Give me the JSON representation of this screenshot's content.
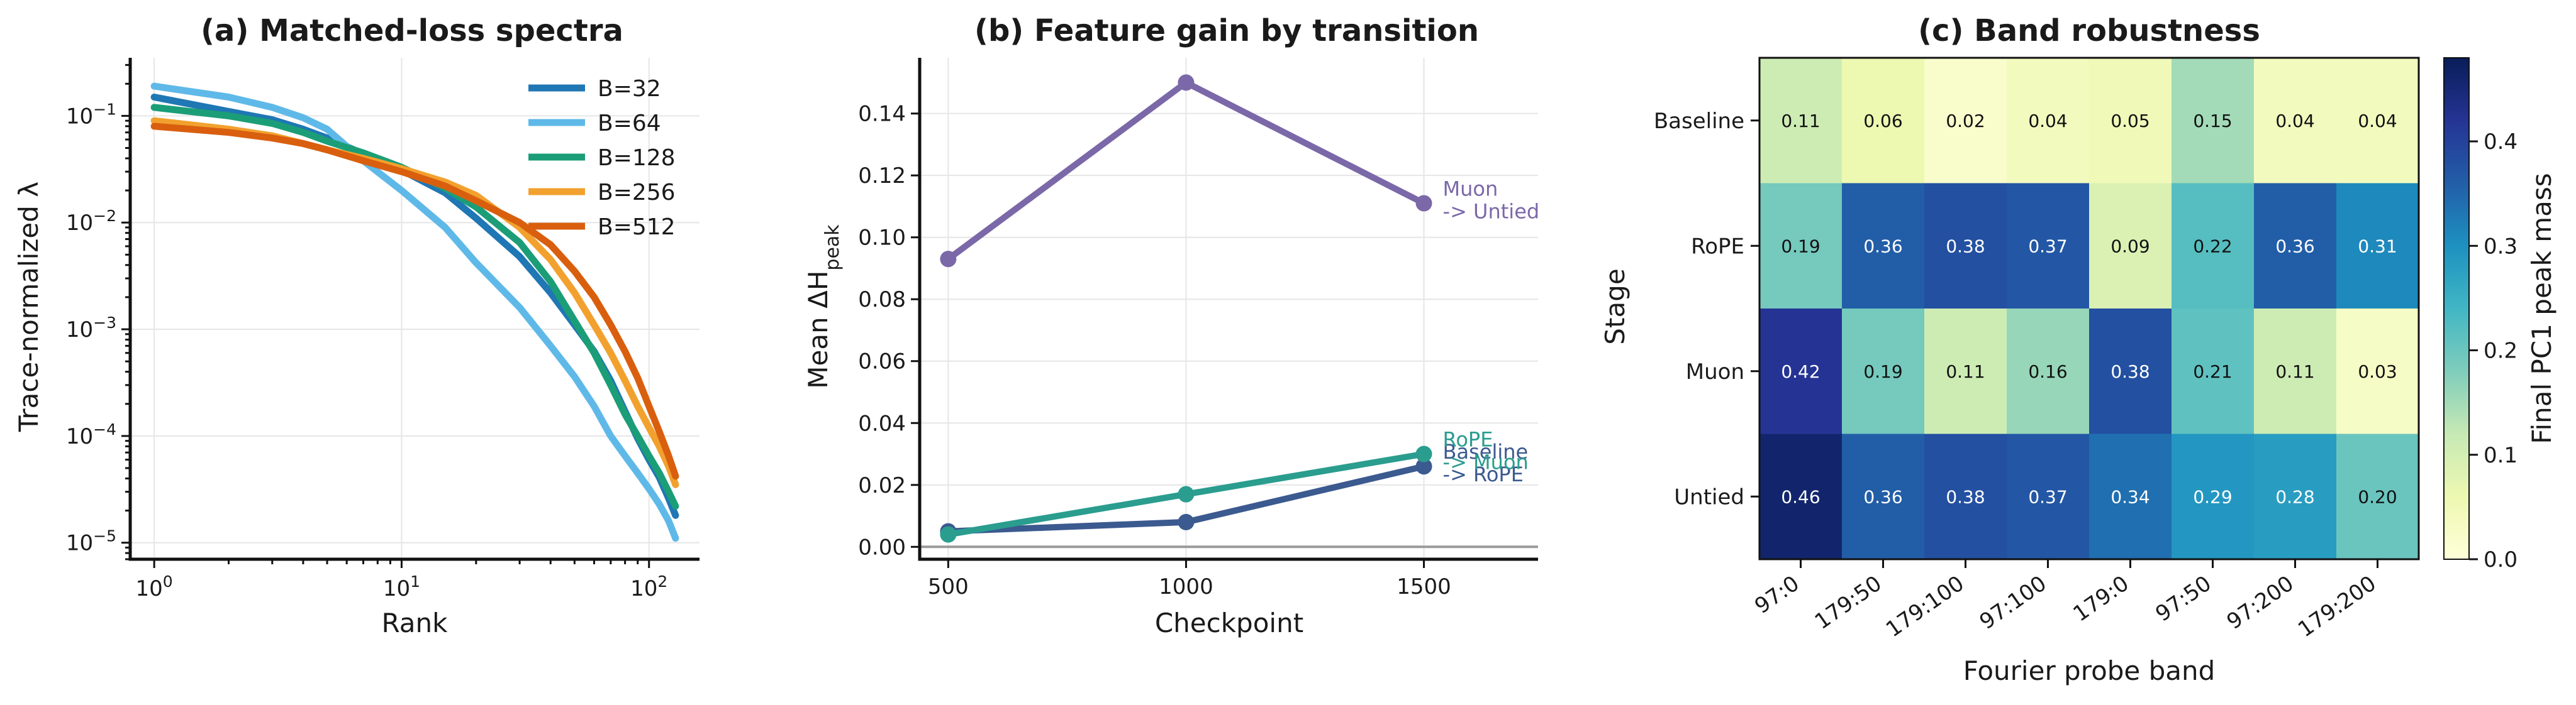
{
  "chart_data": [
    {
      "type": "line",
      "title": "(a) Matched-loss spectra",
      "xlabel": "Rank",
      "ylabel": "Trace-normalized λ",
      "xscale": "log",
      "yscale": "log",
      "xlim": [
        0.8,
        160
      ],
      "ylim": [
        7e-06,
        0.35
      ],
      "xticks": [
        {
          "v": 1,
          "b": "10",
          "e": "0"
        },
        {
          "v": 10,
          "b": "10",
          "e": "1"
        },
        {
          "v": 100,
          "b": "10",
          "e": "2"
        }
      ],
      "yticks": [
        {
          "v": 1e-05,
          "b": "10",
          "e": "−5"
        },
        {
          "v": 0.0001,
          "b": "10",
          "e": "−4"
        },
        {
          "v": 0.001,
          "b": "10",
          "e": "−3"
        },
        {
          "v": 0.01,
          "b": "10",
          "e": "−2"
        },
        {
          "v": 0.1,
          "b": "10",
          "e": "−1"
        }
      ],
      "grid": true,
      "legend_position": "top-right",
      "series": [
        {
          "name": "B=32",
          "color": "#1f77b4",
          "x": [
            1,
            2,
            3,
            4,
            5,
            7,
            10,
            15,
            20,
            30,
            40,
            50,
            60,
            70,
            80,
            90,
            100,
            110,
            120,
            128
          ],
          "y": [
            0.15,
            0.11,
            0.092,
            0.075,
            0.062,
            0.044,
            0.031,
            0.019,
            0.011,
            0.0048,
            0.0022,
            0.0011,
            0.00062,
            0.00033,
            0.00017,
            9.5e-05,
            6e-05,
            4.1e-05,
            2.6e-05,
            1.8e-05
          ]
        },
        {
          "name": "B=64",
          "color": "#5fb9e8",
          "x": [
            1,
            2,
            3,
            4,
            5,
            7,
            10,
            15,
            20,
            30,
            40,
            50,
            60,
            70,
            80,
            90,
            100,
            110,
            120,
            128
          ],
          "y": [
            0.19,
            0.15,
            0.12,
            0.096,
            0.075,
            0.038,
            0.02,
            0.009,
            0.0042,
            0.0016,
            0.0007,
            0.00036,
            0.00019,
            0.0001,
            6.5e-05,
            4.5e-05,
            3.2e-05,
            2.3e-05,
            1.6e-05,
            1.1e-05
          ]
        },
        {
          "name": "B=128",
          "color": "#1b9e77",
          "x": [
            1,
            2,
            3,
            4,
            5,
            7,
            10,
            15,
            20,
            30,
            40,
            50,
            60,
            70,
            80,
            90,
            100,
            110,
            120,
            128
          ],
          "y": [
            0.12,
            0.1,
            0.085,
            0.07,
            0.058,
            0.045,
            0.033,
            0.021,
            0.014,
            0.0065,
            0.0028,
            0.0012,
            0.0006,
            0.0003,
            0.00016,
            0.0001,
            6.5e-05,
            4.5e-05,
            3e-05,
            2.2e-05
          ]
        },
        {
          "name": "B=256",
          "color": "#f2a12e",
          "x": [
            1,
            2,
            3,
            4,
            5,
            7,
            10,
            15,
            20,
            30,
            40,
            50,
            60,
            70,
            80,
            90,
            100,
            110,
            120,
            128
          ],
          "y": [
            0.09,
            0.075,
            0.065,
            0.055,
            0.048,
            0.04,
            0.032,
            0.024,
            0.018,
            0.009,
            0.0045,
            0.0022,
            0.0011,
            0.0006,
            0.00033,
            0.00019,
            0.00012,
            8e-05,
            5.2e-05,
            3.5e-05
          ]
        },
        {
          "name": "B=512",
          "color": "#d95f0e",
          "x": [
            1,
            2,
            3,
            4,
            5,
            7,
            10,
            15,
            20,
            30,
            40,
            50,
            60,
            70,
            80,
            90,
            100,
            110,
            120,
            128
          ],
          "y": [
            0.08,
            0.07,
            0.062,
            0.055,
            0.048,
            0.038,
            0.03,
            0.022,
            0.016,
            0.01,
            0.0062,
            0.0035,
            0.002,
            0.0011,
            0.00062,
            0.00035,
            0.00019,
            0.00011,
            6.5e-05,
            4.2e-05
          ]
        }
      ]
    },
    {
      "type": "line",
      "title": "(b) Feature gain by transition",
      "xlabel": "Checkpoint",
      "ylabel": "Mean ΔH",
      "ylabel_sub": "peak",
      "xlim": [
        440,
        1740
      ],
      "ylim": [
        -0.004,
        0.158
      ],
      "xticks": [
        500,
        1000,
        1500
      ],
      "yticks": [
        "0.00",
        "0.02",
        "0.04",
        "0.06",
        "0.08",
        "0.10",
        "0.12",
        "0.14"
      ],
      "grid": true,
      "zero_line": true,
      "series": [
        {
          "color": "#7b68a8",
          "x": [
            500,
            1000,
            1500
          ],
          "y": [
            0.093,
            0.15,
            0.111
          ],
          "label_lines": [
            "Muon",
            "-> Untied"
          ]
        },
        {
          "color": "#3b5a8f",
          "x": [
            500,
            1000,
            1500
          ],
          "y": [
            0.005,
            0.008,
            0.026
          ],
          "label_lines": [
            "Baseline",
            "-> RoPE"
          ]
        },
        {
          "color": "#2a9d8f",
          "x": [
            500,
            1000,
            1500
          ],
          "y": [
            0.004,
            0.017,
            0.03
          ],
          "label_lines": [
            "RoPE",
            "-> Muon"
          ]
        }
      ]
    },
    {
      "type": "heatmap",
      "title": "(c) Band robustness",
      "xlabel": "Fourier probe band",
      "ylabel": "Stage",
      "rows": [
        "Baseline",
        "RoPE",
        "Muon",
        "Untied"
      ],
      "cols": [
        "97:0",
        "179:50",
        "179:100",
        "97:100",
        "179:0",
        "97:50",
        "97:200",
        "179:200"
      ],
      "values": [
        [
          0.11,
          0.06,
          0.02,
          0.04,
          0.05,
          0.15,
          0.04,
          0.04
        ],
        [
          0.19,
          0.36,
          0.38,
          0.37,
          0.09,
          0.22,
          0.36,
          0.31
        ],
        [
          0.42,
          0.19,
          0.11,
          0.16,
          0.38,
          0.21,
          0.11,
          0.03
        ],
        [
          0.46,
          0.36,
          0.38,
          0.37,
          0.34,
          0.29,
          0.28,
          0.2
        ]
      ],
      "colorbar": {
        "label": "Final PC1 peak mass",
        "min": 0,
        "max": 0.48,
        "ticks": [
          "0.0",
          "0.1",
          "0.2",
          "0.3",
          "0.4"
        ]
      }
    }
  ]
}
